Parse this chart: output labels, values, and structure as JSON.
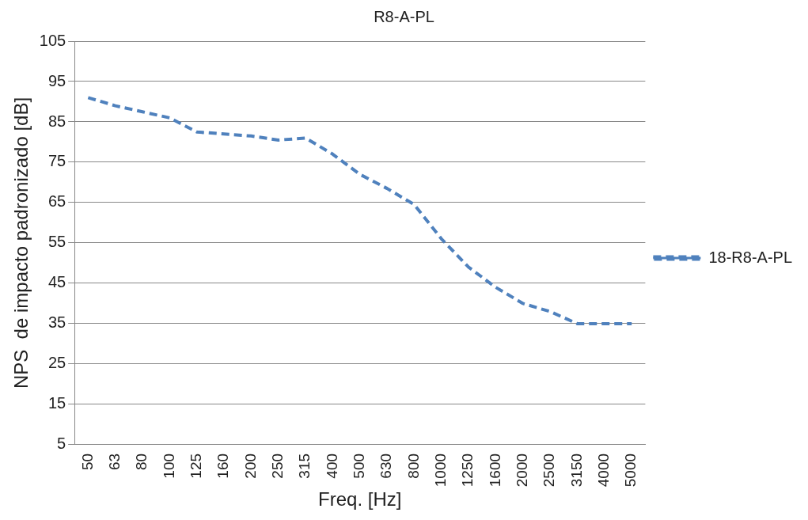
{
  "chart_data": {
    "type": "line",
    "title": "R8-A-PL",
    "xlabel": "Freq. [Hz]",
    "ylabel": "NPS  de impacto padronizado [dB]",
    "categories": [
      "50",
      "63",
      "80",
      "100",
      "125",
      "160",
      "200",
      "250",
      "315",
      "400",
      "500",
      "630",
      "800",
      "1000",
      "1250",
      "1600",
      "2000",
      "2500",
      "3150",
      "4000",
      "5000"
    ],
    "series": [
      {
        "name": "18-R8-A-PL",
        "color": "#4f81bd",
        "values": [
          91,
          89,
          87.5,
          86,
          82.5,
          82,
          81.5,
          80.5,
          81,
          77,
          72,
          68.5,
          64.5,
          56,
          49,
          44,
          40,
          38,
          35,
          35,
          35
        ]
      }
    ],
    "ylim": [
      5,
      105
    ],
    "yticks": [
      5,
      15,
      25,
      35,
      45,
      55,
      65,
      75,
      85,
      95,
      105
    ],
    "grid": "y",
    "legend": "right",
    "line_style": "dashed",
    "marker": "none"
  }
}
